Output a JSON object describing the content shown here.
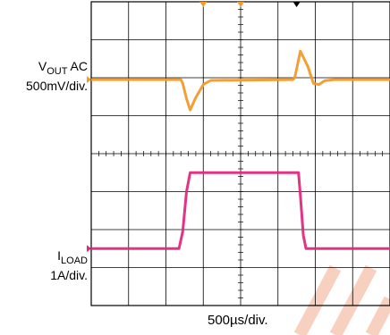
{
  "labels": {
    "vout_main": "V",
    "vout_sub": "OUT",
    "vout_rest": " AC",
    "vout_scale": "500mV/div.",
    "iload_main": "I",
    "iload_sub": "LOAD",
    "iload_scale": "1A/div.",
    "x_scale": "500µs/div."
  },
  "colors": {
    "vout_trace": "#F39A2B",
    "iload_trace": "#E0287E",
    "grid": "#000000",
    "watermark": "#F7D0C0"
  },
  "chart_data": {
    "type": "line",
    "x_unit": "div",
    "xlim": [
      0,
      8
    ],
    "ylim": [
      0,
      8
    ],
    "grid": true,
    "minor_ticks_per_div": 5,
    "series": [
      {
        "name": "VOUT AC",
        "x": [
          0,
          2.4,
          2.45,
          2.55,
          2.65,
          2.8,
          3.0,
          3.2,
          5.4,
          5.45,
          5.6,
          5.8,
          5.95,
          6.1,
          6.25,
          6.5,
          8
        ],
        "y": [
          5.95,
          5.95,
          5.85,
          5.45,
          5.15,
          5.48,
          5.82,
          5.93,
          5.95,
          6.0,
          6.7,
          6.3,
          5.85,
          5.82,
          5.92,
          5.95,
          5.95
        ]
      },
      {
        "name": "ILOAD",
        "x": [
          0,
          2.35,
          2.45,
          2.55,
          2.65,
          5.55,
          5.6,
          5.68,
          5.75,
          8
        ],
        "y": [
          1.5,
          1.5,
          1.95,
          3.0,
          3.5,
          3.5,
          2.9,
          1.85,
          1.5,
          1.5
        ]
      }
    ]
  }
}
